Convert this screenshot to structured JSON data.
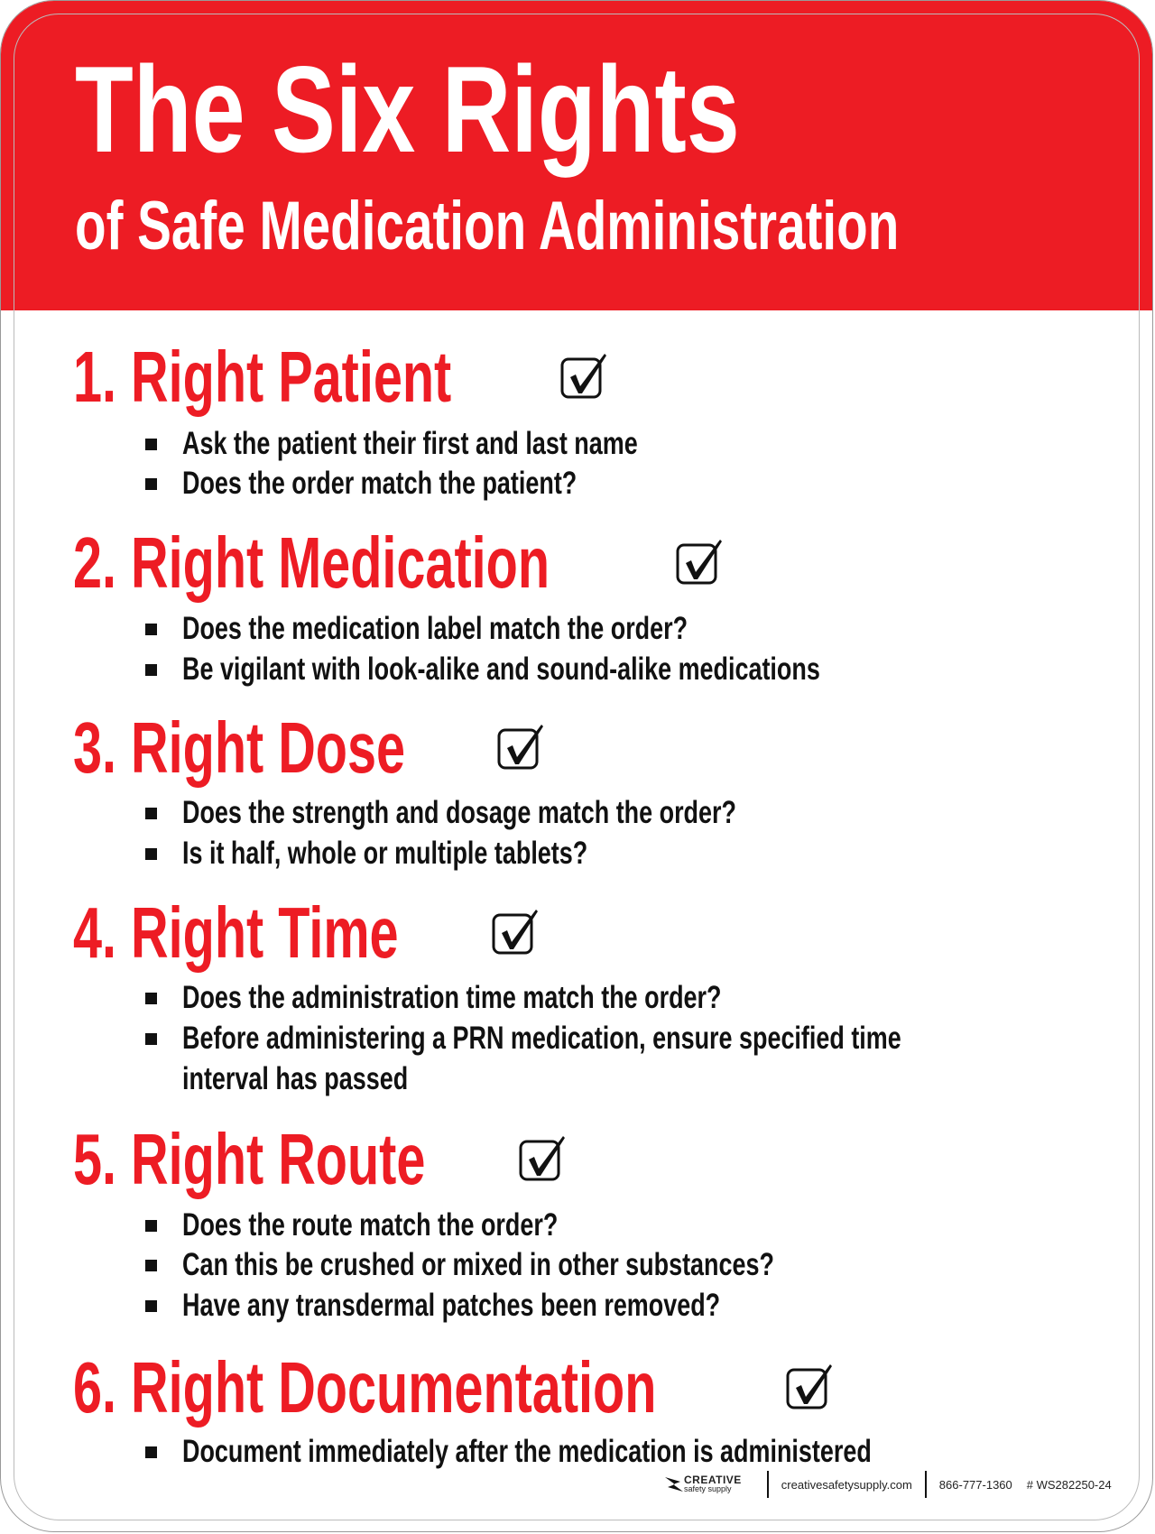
{
  "title": "The Six Rights",
  "subtitle": "of Safe Medication Administration",
  "colors": {
    "header_red": "#ed1c24",
    "heading_red": "#ed1c24",
    "text": "#111111"
  },
  "sections": [
    {
      "heading": "1. Right Patient",
      "icon": "checked-box-icon",
      "bullets": [
        "Ask the patient their first and last name",
        "Does the order match the patient?"
      ]
    },
    {
      "heading": "2. Right Medication",
      "icon": "checked-box-icon",
      "bullets": [
        "Does the medication label match the order?",
        "Be vigilant with look-alike and sound-alike medications"
      ]
    },
    {
      "heading": "3. Right Dose",
      "icon": "checked-box-icon",
      "bullets": [
        "Does the strength and dosage match the order?",
        "Is it half, whole or multiple tablets?"
      ]
    },
    {
      "heading": "4. Right Time",
      "icon": "checked-box-icon",
      "bullets": [
        "Does the administration time match the order?",
        "Before administering a PRN medication, ensure specified time",
        "interval has passed"
      ]
    },
    {
      "heading": "5. Right Route",
      "icon": "checked-box-icon",
      "bullets": [
        "Does the route match the order?",
        "Can this be crushed or mixed in other substances?",
        "Have any transdermal patches been removed?"
      ]
    },
    {
      "heading": "6. Right Documentation",
      "icon": "checked-box-icon",
      "bullets": [
        "Document immediately after the medication is administered"
      ]
    }
  ],
  "footer": {
    "logo_top": "CREATIVE",
    "logo_bottom": "safety supply",
    "website": "creativesafetysupply.com",
    "phone": "866-777-1360",
    "product_code": "# WS282250-24"
  }
}
